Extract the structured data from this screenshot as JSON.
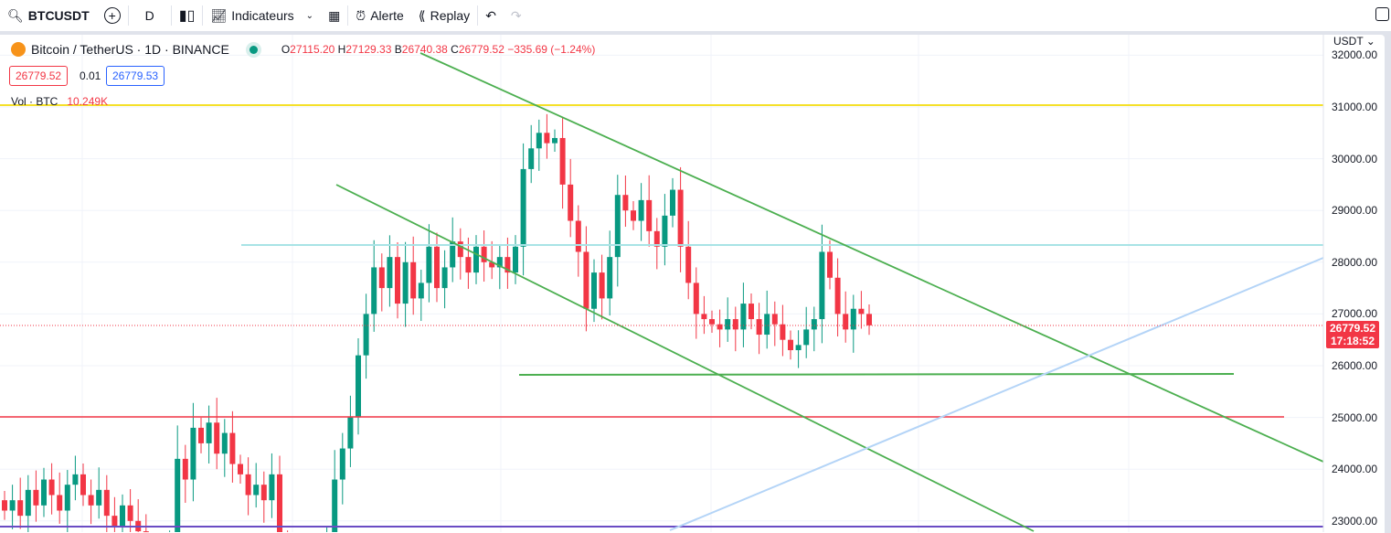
{
  "toolbar": {
    "symbol": "BTCUSDT",
    "interval": "D",
    "indicators": "Indicateurs",
    "alert": "Alerte",
    "replay": "Replay"
  },
  "legend": {
    "title": "Bitcoin / TetherUS · 1D · BINANCE",
    "o_label": "O",
    "o": "27115.20",
    "h_label": "H",
    "h": "27129.33",
    "l_label": "B",
    "l": "26740.38",
    "c_label": "C",
    "c": "26779.52",
    "change": "−335.69 (−1.24%)"
  },
  "quote": {
    "sell": "26779.52",
    "spread": "0.01",
    "buy": "26779.53"
  },
  "volume": {
    "label": "Vol · BTC",
    "value": "10.249K"
  },
  "axis": {
    "currency": "USDT",
    "ticks": [
      "32000.00",
      "31000.00",
      "30000.00",
      "29000.00",
      "28000.00",
      "27000.00",
      "26000.00",
      "25000.00",
      "24000.00",
      "23000.00"
    ],
    "last_price": "26779.52",
    "countdown": "17:18:52"
  },
  "colors": {
    "up": "#089981",
    "down": "#f23645",
    "green_line": "#4caf50",
    "yellow": "#f5e02a",
    "cyan": "#a8e3e6",
    "red": "#f23645",
    "purple": "#6a4cc4",
    "lightblue": "#b4d4f7"
  },
  "closes": [
    23200,
    23400,
    23100,
    23600,
    23300,
    23800,
    23500,
    23200,
    23700,
    23900,
    23500,
    23300,
    23600,
    23100,
    22900,
    23300,
    23000,
    22800,
    22000,
    21800,
    22200,
    22500,
    24200,
    23800,
    24800,
    24500,
    24900,
    24300,
    24700,
    24100,
    23900,
    23500,
    23700,
    23400,
    23900,
    22500,
    22200,
    22000,
    21800,
    22100,
    22400,
    22600,
    23800,
    24400,
    25000,
    26200,
    27000,
    27900,
    27500,
    28100,
    27200,
    28000,
    27300,
    27600,
    28300,
    27500,
    27900,
    28400,
    28100,
    27800,
    28300,
    28000,
    27900,
    28100,
    27800,
    28300,
    29800,
    30200,
    30500,
    30300,
    30400,
    29500,
    28800,
    28200,
    27100,
    27800,
    27300,
    28100,
    29300,
    29000,
    28800,
    29200,
    28600,
    28300,
    28900,
    29400,
    28300,
    27600,
    27000,
    26900,
    26800,
    26700,
    26900,
    26700,
    27200,
    26900,
    26600,
    27000,
    26800,
    26500,
    26300,
    26400,
    26700,
    26900,
    28200,
    27700,
    27000,
    26700,
    27100,
    27000,
    26780
  ]
}
